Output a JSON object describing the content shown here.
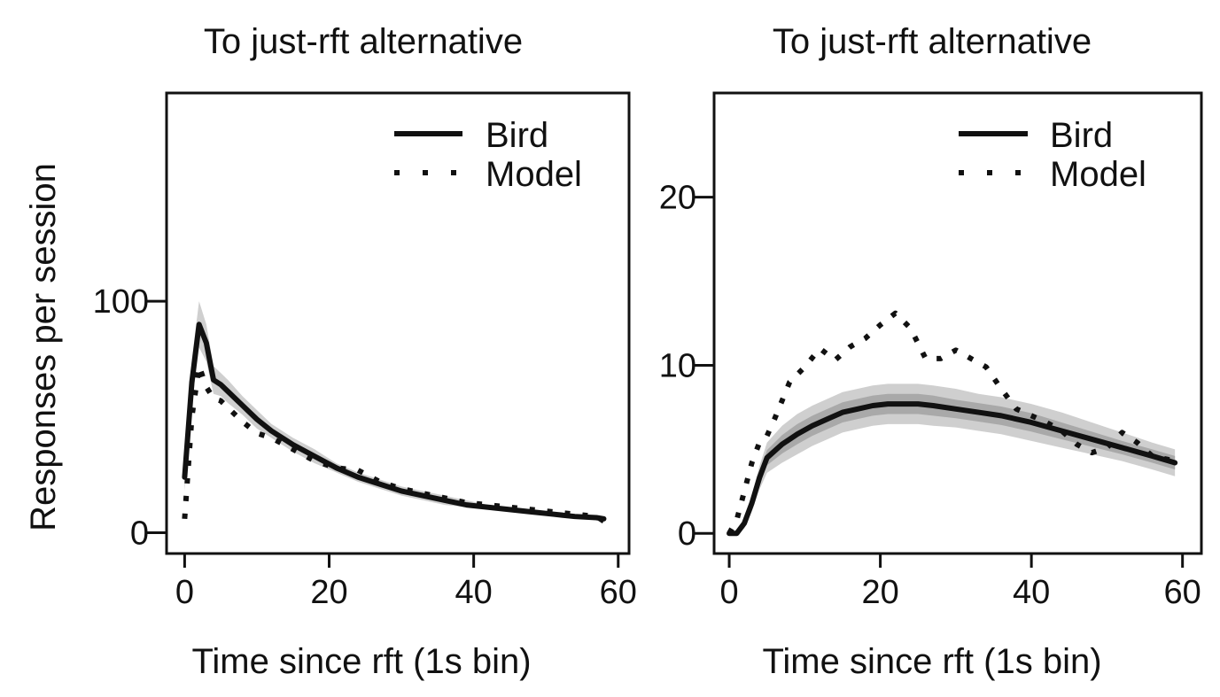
{
  "figure": {
    "ylabel": "Responses per session"
  },
  "chart_data": [
    {
      "type": "line",
      "title": "To just-rft alternative",
      "xlabel": "Time since rft (1s bin)",
      "ylabel": "Responses per session",
      "xlim": [
        -2.5,
        61.5
      ],
      "ylim": [
        -9,
        190
      ],
      "xticks": [
        0,
        20,
        40,
        60
      ],
      "yticks": [
        0,
        100
      ],
      "grid": false,
      "legend_position": "top-right",
      "series": [
        {
          "name": "Bird",
          "style": "solid",
          "x": [
            0,
            1,
            2,
            3,
            4,
            5,
            6,
            8,
            10,
            12,
            15,
            18,
            21,
            24,
            27,
            30,
            33,
            36,
            39,
            42,
            45,
            48,
            51,
            54,
            57,
            58
          ],
          "values": [
            24,
            65,
            90,
            82,
            66,
            64,
            61,
            55,
            49,
            44,
            38,
            33,
            28,
            24,
            21,
            18,
            16,
            14,
            12,
            11,
            10,
            9,
            8,
            7,
            6.5,
            6
          ],
          "band": [
            {
              "level": "outer",
              "lower": [
                18,
                55,
                80,
                74,
                60,
                59,
                56,
                51,
                45,
                41,
                35,
                30,
                26,
                22,
                19,
                16,
                14,
                12,
                11,
                10,
                9,
                8,
                7,
                6,
                5.5,
                5
              ],
              "upper": [
                30,
                75,
                100,
                90,
                72,
                69,
                66,
                59,
                53,
                47,
                41,
                36,
                30,
                26,
                23,
                20,
                18,
                16,
                14,
                12,
                11,
                10,
                9,
                8,
                7.5,
                7
              ]
            }
          ]
        },
        {
          "name": "Model",
          "style": "dotted",
          "x": [
            0,
            1,
            2,
            3,
            4,
            5,
            6,
            8,
            10,
            12,
            15,
            18,
            21,
            24,
            27,
            30,
            33,
            36,
            39,
            42,
            45,
            48,
            51,
            54,
            57,
            58
          ],
          "values": [
            6,
            50,
            72,
            63,
            58,
            57,
            54,
            48,
            43,
            41,
            36,
            31,
            28,
            27,
            22,
            19,
            17,
            15,
            13,
            12,
            11,
            10,
            9,
            8,
            7,
            5
          ],
          "band": []
        }
      ]
    },
    {
      "type": "line",
      "title": "To just-rft alternative",
      "xlabel": "Time since rft (1s bin)",
      "ylabel": "",
      "xlim": [
        -2,
        62.5
      ],
      "ylim": [
        -1.2,
        26.2
      ],
      "xticks": [
        0,
        20,
        40,
        60
      ],
      "yticks": [
        0,
        10,
        20
      ],
      "grid": false,
      "legend_position": "top-right",
      "series": [
        {
          "name": "Bird",
          "style": "solid",
          "x": [
            0,
            1,
            2,
            3,
            4,
            5,
            7,
            9,
            11,
            13,
            15,
            17,
            19,
            21,
            23,
            25,
            27,
            30,
            33,
            36,
            40,
            44,
            48,
            52,
            56,
            59
          ],
          "values": [
            0,
            0,
            0.6,
            1.8,
            3.3,
            4.5,
            5.3,
            5.9,
            6.4,
            6.8,
            7.2,
            7.4,
            7.6,
            7.7,
            7.7,
            7.7,
            7.6,
            7.4,
            7.2,
            7.0,
            6.6,
            6.1,
            5.6,
            5.1,
            4.6,
            4.2
          ],
          "band": [
            {
              "level": "outer",
              "lower": [
                0,
                0,
                0.3,
                1.3,
                2.6,
                3.6,
                4.2,
                4.7,
                5.2,
                5.6,
                6.0,
                6.2,
                6.4,
                6.5,
                6.5,
                6.5,
                6.4,
                6.3,
                6.1,
                5.9,
                5.5,
                5.1,
                4.7,
                4.3,
                3.8,
                3.4
              ],
              "upper": [
                0,
                0,
                0.9,
                2.3,
                4.0,
                5.4,
                6.4,
                7.1,
                7.6,
                8.0,
                8.4,
                8.6,
                8.8,
                8.9,
                8.9,
                8.9,
                8.8,
                8.6,
                8.3,
                8.1,
                7.7,
                7.2,
                6.6,
                6.0,
                5.4,
                5.0
              ]
            },
            {
              "level": "inner",
              "lower": [
                0,
                0,
                0.45,
                1.55,
                2.95,
                4.05,
                4.75,
                5.3,
                5.8,
                6.2,
                6.6,
                6.8,
                7.0,
                7.1,
                7.1,
                7.1,
                7.0,
                6.85,
                6.65,
                6.45,
                6.05,
                5.6,
                5.15,
                4.7,
                4.2,
                3.8
              ],
              "upper": [
                0,
                0,
                0.75,
                2.05,
                3.65,
                4.95,
                5.85,
                6.5,
                7.0,
                7.4,
                7.8,
                8.0,
                8.2,
                8.3,
                8.3,
                8.3,
                8.2,
                7.95,
                7.75,
                7.55,
                7.15,
                6.6,
                6.05,
                5.5,
                5.0,
                4.6
              ]
            }
          ]
        },
        {
          "name": "Model",
          "style": "dotted",
          "x": [
            0,
            1,
            2,
            3,
            4,
            5,
            6,
            8,
            10,
            12,
            14,
            16,
            18,
            20,
            22,
            24,
            26,
            28,
            30,
            32,
            34,
            36,
            38,
            40,
            42,
            44,
            46,
            48,
            50,
            52,
            54,
            56,
            58,
            59
          ],
          "values": [
            0,
            0.8,
            2.5,
            4.2,
            5.4,
            5.8,
            6.8,
            9.0,
            9.9,
            11.0,
            10.3,
            11.1,
            11.6,
            12.4,
            13.1,
            12.2,
            10.4,
            10.4,
            10.9,
            10.4,
            9.9,
            8.6,
            7.4,
            7.0,
            6.6,
            6.1,
            5.3,
            4.8,
            5.1,
            6.0,
            5.4,
            4.6,
            4.4,
            4.3
          ],
          "band": []
        }
      ]
    }
  ]
}
